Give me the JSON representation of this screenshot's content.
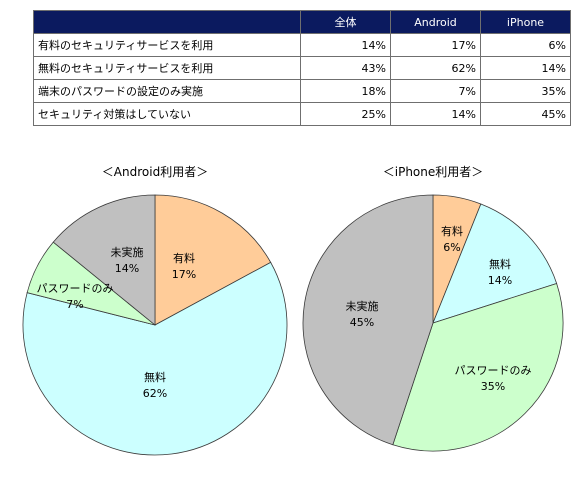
{
  "table": {
    "headers": [
      "",
      "全体",
      "Android",
      "iPhone"
    ],
    "rows": [
      {
        "label": "有料のセキュリティサービスを利用",
        "values": [
          "14%",
          "17%",
          "6%"
        ]
      },
      {
        "label": "無料のセキュリティサービスを利用",
        "values": [
          "43%",
          "62%",
          "14%"
        ]
      },
      {
        "label": "端末のパスワードの設定のみ実施",
        "values": [
          "18%",
          "7%",
          "35%"
        ]
      },
      {
        "label": "セキュリティ対策はしていない",
        "values": [
          "25%",
          "14%",
          "45%"
        ]
      }
    ]
  },
  "chart_data": [
    {
      "type": "pie",
      "title": "＜Android利用者＞",
      "categories": [
        "有料",
        "無料",
        "パスワードのみ",
        "未実施"
      ],
      "values": [
        17,
        62,
        7,
        14
      ],
      "value_labels": [
        "17%",
        "62%",
        "7%",
        "14%"
      ],
      "colors": [
        "#ffcc99",
        "#ccffff",
        "#ccffcc",
        "#c0c0c0"
      ]
    },
    {
      "type": "pie",
      "title": "＜iPhone利用者＞",
      "categories": [
        "有料",
        "無料",
        "パスワードのみ",
        "未実施"
      ],
      "values": [
        6,
        14,
        35,
        45
      ],
      "value_labels": [
        "6%",
        "14%",
        "35%",
        "45%"
      ],
      "colors": [
        "#ffcc99",
        "#ccffff",
        "#ccffcc",
        "#c0c0c0"
      ]
    }
  ]
}
